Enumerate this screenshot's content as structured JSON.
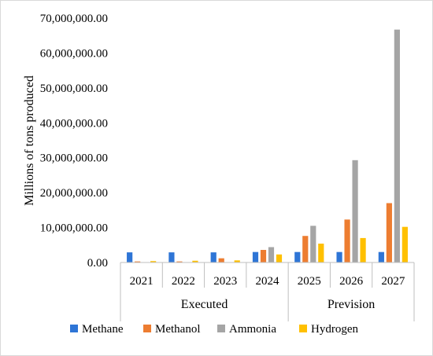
{
  "chart_data": {
    "type": "bar",
    "ylabel": "Millions of tons produced",
    "xlabel": "",
    "ylim": [
      0,
      70000000
    ],
    "y_ticks": [
      0,
      10000000,
      20000000,
      30000000,
      40000000,
      50000000,
      60000000,
      70000000
    ],
    "y_tick_labels": [
      "0.00",
      "10,000,000.00",
      "20,000,000.00",
      "30,000,000.00",
      "40,000,000.00",
      "50,000,000.00",
      "60,000,000.00",
      "70,000,000.00"
    ],
    "categories": [
      "2021",
      "2022",
      "2023",
      "2024",
      "2025",
      "2026",
      "2027"
    ],
    "groups": [
      {
        "label": "Executed",
        "categories": [
          "2021",
          "2022",
          "2023",
          "2024"
        ]
      },
      {
        "label": "Prevision",
        "categories": [
          "2025",
          "2026",
          "2027"
        ]
      }
    ],
    "series": [
      {
        "name": "Methane",
        "color": "#2e75d6",
        "values": [
          2900000,
          2900000,
          2900000,
          3000000,
          3000000,
          3000000,
          3000000
        ]
      },
      {
        "name": "Methanol",
        "color": "#ed7d31",
        "values": [
          300000,
          300000,
          1200000,
          3600000,
          7600000,
          12300000,
          17000000
        ]
      },
      {
        "name": "Ammonia",
        "color": "#a5a5a5",
        "values": [
          100000,
          100000,
          100000,
          4400000,
          10500000,
          29300000,
          66700000
        ]
      },
      {
        "name": "Hydrogen",
        "color": "#ffc000",
        "values": [
          400000,
          500000,
          600000,
          2300000,
          5400000,
          7000000,
          10200000
        ]
      }
    ],
    "legend_position": "bottom",
    "grid": false
  }
}
